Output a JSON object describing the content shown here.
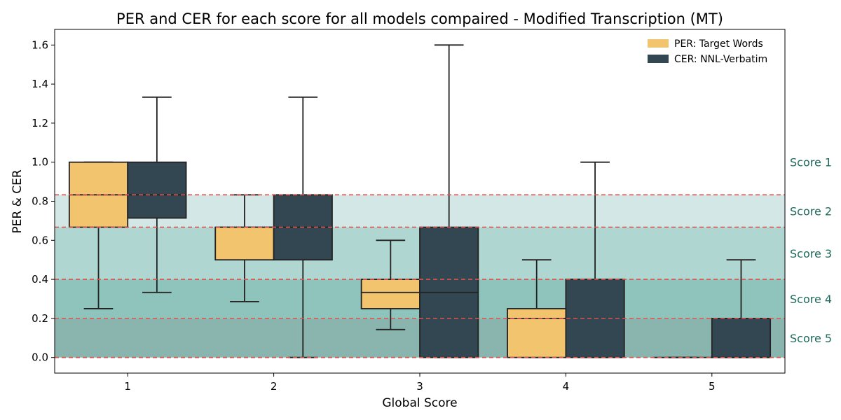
{
  "chart_data": {
    "type": "box",
    "title": "PER and CER for each score for all models compaired - Modified Transcription (MT)",
    "xlabel": "Global Score",
    "ylabel": "PER & CER",
    "categories": [
      "1",
      "2",
      "3",
      "4",
      "5"
    ],
    "ylim": [
      -0.08,
      1.68
    ],
    "yticks": [
      "0.0",
      "0.2",
      "0.4",
      "0.6",
      "0.8",
      "1.0",
      "1.2",
      "1.4",
      "1.6"
    ],
    "legend_position": "top-right",
    "series": [
      {
        "name": "PER: Target Words",
        "color": "#f2c46d",
        "boxes": [
          {
            "whisker_low": 0.25,
            "q1": 0.667,
            "median": 0.833,
            "q3": 1.0,
            "whisker_high": 1.0
          },
          {
            "whisker_low": 0.286,
            "q1": 0.5,
            "median": 0.667,
            "q3": 0.667,
            "whisker_high": 0.833
          },
          {
            "whisker_low": 0.143,
            "q1": 0.25,
            "median": 0.333,
            "q3": 0.4,
            "whisker_high": 0.6
          },
          {
            "whisker_low": 0.0,
            "q1": 0.0,
            "median": 0.2,
            "q3": 0.25,
            "whisker_high": 0.5
          },
          {
            "whisker_low": 0.0,
            "q1": 0.0,
            "median": 0.0,
            "q3": 0.0,
            "whisker_high": 0.0
          }
        ]
      },
      {
        "name": "CER: NNL-Verbatim",
        "color": "#334753",
        "boxes": [
          {
            "whisker_low": 0.333,
            "q1": 0.714,
            "median": 0.833,
            "q3": 1.0,
            "whisker_high": 1.333
          },
          {
            "whisker_low": 0.0,
            "q1": 0.5,
            "median": 0.667,
            "q3": 0.833,
            "whisker_high": 1.333
          },
          {
            "whisker_low": 0.0,
            "q1": 0.0,
            "median": 0.333,
            "q3": 0.667,
            "whisker_high": 1.6
          },
          {
            "whisker_low": 0.0,
            "q1": 0.0,
            "median": 0.4,
            "q3": 0.4,
            "whisker_high": 1.0
          },
          {
            "whisker_low": 0.0,
            "q1": 0.0,
            "median": 0.0,
            "q3": 0.2,
            "whisker_high": 0.5
          }
        ]
      }
    ],
    "score_bands": [
      {
        "label": "Score 1",
        "low": 0.833,
        "high": 1.0,
        "fill": "none"
      },
      {
        "label": "Score 2",
        "low": 0.667,
        "high": 0.833,
        "fill": "#d3e8e6"
      },
      {
        "label": "Score 3",
        "low": 0.4,
        "high": 0.667,
        "fill": "#b0d6d2"
      },
      {
        "label": "Score 4",
        "low": 0.2,
        "high": 0.4,
        "fill": "#8fc4bc"
      },
      {
        "label": "Score 5",
        "low": 0.0,
        "high": 0.2,
        "fill": "#8ab4ae"
      }
    ],
    "threshold_lines": [
      0.0,
      0.2,
      0.4,
      0.667,
      0.833
    ],
    "threshold_color": "#d9534f",
    "band_label_color": "#1f6b5b"
  }
}
